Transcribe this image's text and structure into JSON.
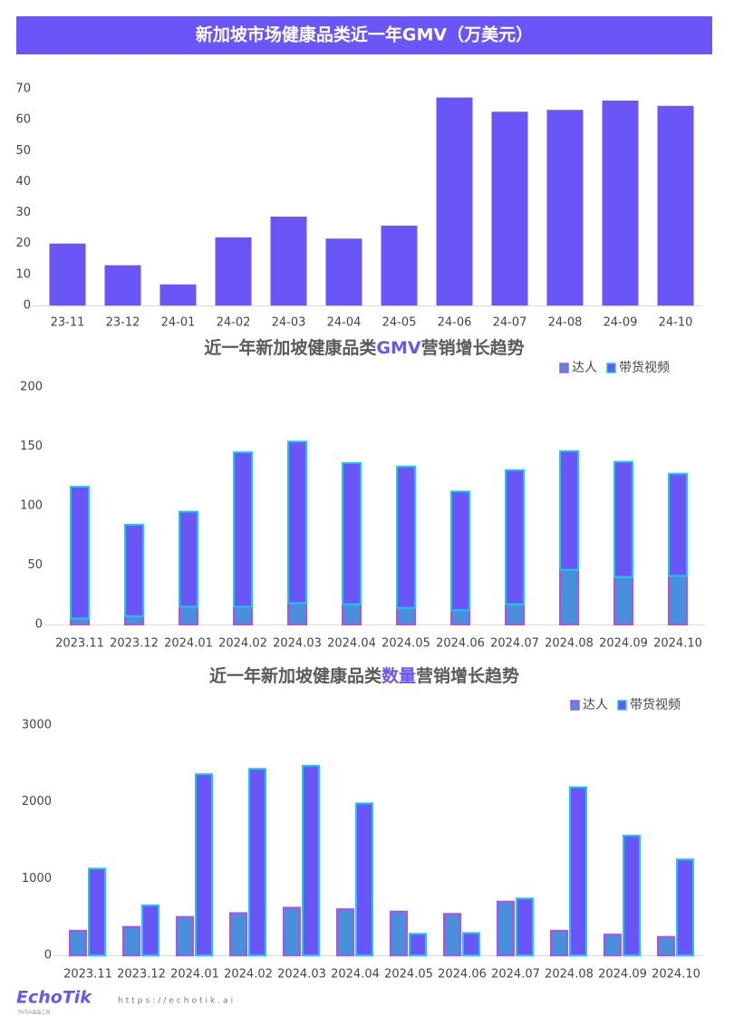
{
  "header": {
    "title": "新加坡市场健康品类近一年GMV（万美元）"
  },
  "chart_data": [
    {
      "type": "bar",
      "categories": [
        "23-11",
        "23-12",
        "24-01",
        "24-02",
        "24-03",
        "24-04",
        "24-05",
        "24-06",
        "24-07",
        "24-08",
        "24-09",
        "24-10"
      ],
      "values": [
        20,
        13,
        6.8,
        22,
        28.7,
        21.6,
        25.8,
        67.2,
        62.6,
        63.2,
        66.2,
        64.5
      ],
      "color": "#6a55f6",
      "ylim": [
        0,
        70
      ],
      "yticks": [
        0,
        10,
        20,
        30,
        40,
        50,
        60,
        70
      ]
    },
    {
      "type": "stacked_bar",
      "title_segments": [
        "近一年新加坡健康品类",
        "GMV",
        "营销增长趋势"
      ],
      "categories": [
        "2023.11",
        "2023.12",
        "2024.01",
        "2024.02",
        "2024.03",
        "2024.04",
        "2024.05",
        "2024.06",
        "2024.07",
        "2024.08",
        "2024.09",
        "2024.10"
      ],
      "series": [
        {
          "name": "达人",
          "color": "#4a8fdc",
          "border": "#b34ee6",
          "values": [
            5,
            7,
            15,
            15,
            18,
            17,
            14,
            12,
            17,
            46,
            40,
            41
          ]
        },
        {
          "name": "带货视频",
          "color": "#6a55f6",
          "border": "#1ac8f2",
          "values": [
            111,
            77,
            80,
            130,
            136,
            119,
            119,
            100,
            113,
            100,
            97,
            86
          ]
        }
      ],
      "ylim": [
        0,
        200
      ],
      "yticks": [
        0,
        50,
        100,
        150,
        200
      ]
    },
    {
      "type": "grouped_bar",
      "title_segments": [
        "近一年新加坡健康品类",
        "数量",
        "营销增长趋势"
      ],
      "categories": [
        "2023.11",
        "2023.12",
        "2024.01",
        "2024.02",
        "2024.03",
        "2024.04",
        "2024.05",
        "2024.06",
        "2024.07",
        "2024.08",
        "2024.09",
        "2024.10"
      ],
      "series": [
        {
          "name": "达人",
          "color": "#4a8fdc",
          "border": "#b34ee6",
          "values": [
            320,
            370,
            500,
            550,
            620,
            600,
            570,
            540,
            700,
            320,
            270,
            240
          ]
        },
        {
          "name": "带货视频",
          "color": "#6a55f6",
          "border": "#1ac8f2",
          "values": [
            1130,
            650,
            2360,
            2430,
            2470,
            1980,
            280,
            290,
            740,
            2190,
            1560,
            1250
          ]
        }
      ],
      "ylim": [
        0,
        3000
      ],
      "yticks": [
        0,
        1000,
        2000,
        3000
      ]
    }
  ],
  "footer": {
    "logo": "EchoTik",
    "logo_sub": "TikTok选品工具",
    "url": "https://echotik.ai"
  }
}
